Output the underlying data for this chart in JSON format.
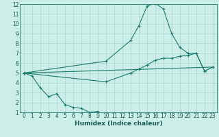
{
  "title": "",
  "xlabel": "Humidex (Indice chaleur)",
  "background_color": "#cceee8",
  "grid_color": "#aad4ce",
  "line_color": "#1a7a6e",
  "xlim": [
    -0.5,
    23.5
  ],
  "ylim": [
    1,
    12
  ],
  "xticks": [
    0,
    1,
    2,
    3,
    4,
    5,
    6,
    7,
    8,
    9,
    10,
    11,
    12,
    13,
    14,
    15,
    16,
    17,
    18,
    19,
    20,
    21,
    22,
    23
  ],
  "yticks": [
    1,
    2,
    3,
    4,
    5,
    6,
    7,
    8,
    9,
    10,
    11,
    12
  ],
  "series1_x": [
    0,
    1,
    2,
    3,
    4,
    5,
    6,
    7,
    8,
    9
  ],
  "series1_y": [
    5.0,
    4.7,
    3.5,
    2.6,
    2.9,
    1.8,
    1.5,
    1.4,
    1.0,
    1.1
  ],
  "series2_x": [
    0,
    10,
    13,
    14,
    15,
    16,
    17,
    18,
    19,
    20,
    21,
    22,
    23
  ],
  "series2_y": [
    5.0,
    6.2,
    8.3,
    9.8,
    11.8,
    12.1,
    11.5,
    9.0,
    7.6,
    7.0,
    7.0,
    5.2,
    5.6
  ],
  "series3_x": [
    0,
    10,
    13,
    14,
    15,
    16,
    17,
    18,
    19,
    20,
    21,
    22,
    23
  ],
  "series3_y": [
    5.0,
    4.1,
    5.0,
    5.4,
    5.8,
    6.3,
    6.5,
    6.5,
    6.7,
    6.8,
    7.0,
    5.2,
    5.6
  ],
  "series4_x": [
    0,
    23
  ],
  "series4_y": [
    5.0,
    5.6
  ]
}
